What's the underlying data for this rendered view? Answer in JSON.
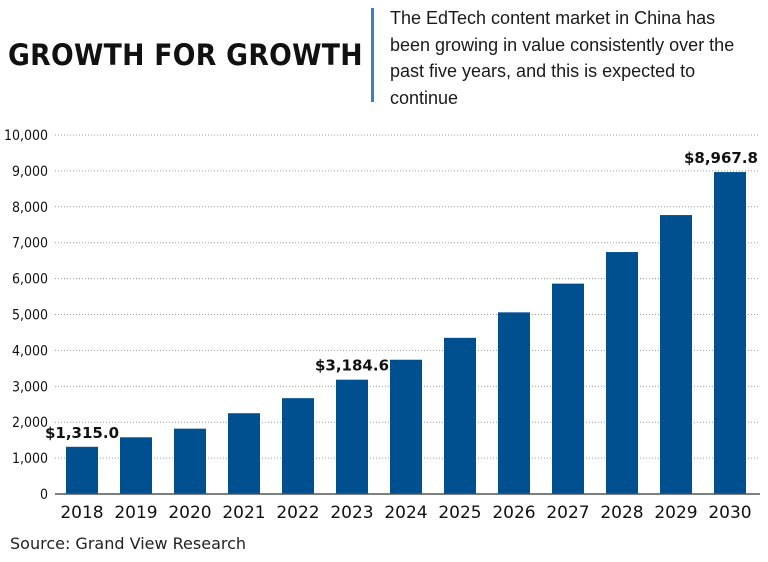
{
  "header": {
    "title": "GROWTH FOR GROWTH",
    "subtitle": "The EdTech content market in China has been growing in value consistently over the past five years, and this is expected to continue"
  },
  "source": "Source: Grand View Research",
  "chart_data": {
    "type": "bar",
    "categories": [
      "2018",
      "2019",
      "2020",
      "2021",
      "2022",
      "2023",
      "2024",
      "2025",
      "2026",
      "2027",
      "2028",
      "2029",
      "2030"
    ],
    "values": [
      1315.0,
      1580,
      1820,
      2250,
      2670,
      3184.6,
      3740,
      4350,
      5060,
      5860,
      6740,
      7770,
      8967.8
    ],
    "data_labels": {
      "0": "$1,315.0",
      "5": "$3,184.6",
      "12": "$8,967.8"
    },
    "ylim": [
      0,
      10000
    ],
    "yticks": [
      0,
      1000,
      2000,
      3000,
      4000,
      5000,
      6000,
      7000,
      8000,
      9000,
      10000
    ],
    "ytick_labels": [
      "0",
      "1,000",
      "2,000",
      "3,000",
      "4,000",
      "5,000",
      "6,000",
      "7,000",
      "8,000",
      "9,000",
      "10,000"
    ],
    "grid": true,
    "bar_color": "#00508f",
    "xlabel": "",
    "ylabel": ""
  }
}
